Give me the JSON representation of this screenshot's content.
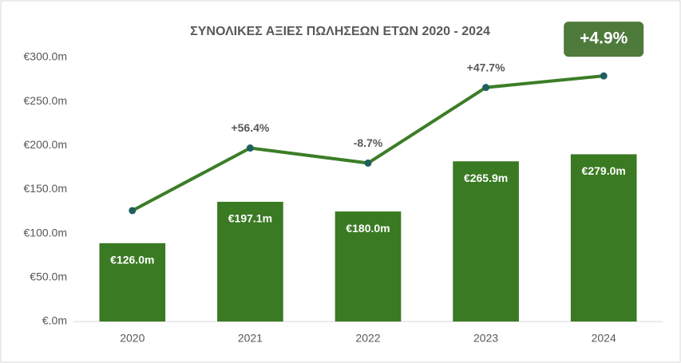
{
  "chart_data": {
    "type": "bar-line",
    "title": "ΣΥΝΟΛΙΚΕΣ ΑΞΙΕΣ ΠΩΛΗΣΕΩΝ ΕΤΩΝ 2020 - 2024",
    "categories": [
      "2020",
      "2021",
      "2022",
      "2023",
      "2024"
    ],
    "series": [
      {
        "type": "bar",
        "color": "#3a7a23",
        "values": [
          89,
          136,
          125,
          182,
          190
        ]
      },
      {
        "type": "line",
        "color": "#3b7d27",
        "marker_color": "#1f5f5f",
        "values": [
          126.0,
          197.1,
          180.0,
          265.9,
          279.0
        ],
        "value_labels": [
          "€126.0m",
          "€197.1m",
          "€180.0m",
          "€265.9m",
          "€279.0m"
        ]
      }
    ],
    "growth": {
      "values": [
        null,
        56.4,
        -8.7,
        47.7,
        4.9
      ],
      "value_labels": [
        null,
        "+56.4%",
        "-8.7%",
        "+47.7%",
        "+4.9%"
      ]
    },
    "ylim": [
      0,
      300
    ],
    "yticks": [
      {
        "value": 0,
        "label": "€.0m"
      },
      {
        "value": 50,
        "label": "€50.0m"
      },
      {
        "value": 100,
        "label": "€100.0m"
      },
      {
        "value": 150,
        "label": "€150.0m"
      },
      {
        "value": 200,
        "label": "€200.0m"
      },
      {
        "value": 250,
        "label": "€250.0m"
      },
      {
        "value": 300,
        "label": "€300.0m"
      }
    ],
    "grid": false
  }
}
